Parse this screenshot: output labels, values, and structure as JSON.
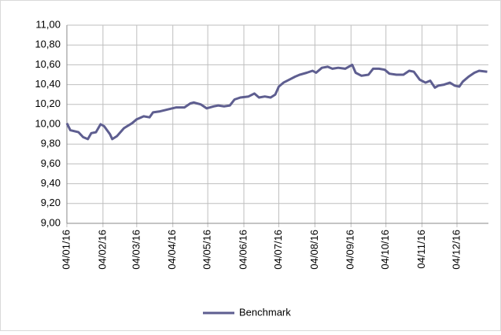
{
  "chart_data": {
    "type": "line",
    "x": [
      "04/01/16",
      "07/01/16",
      "14/01/16",
      "18/01/16",
      "22/01/16",
      "25/01/16",
      "29/01/16",
      "02/02/16",
      "05/02/16",
      "10/02/16",
      "12/02/16",
      "16/02/16",
      "22/02/16",
      "29/02/16",
      "04/03/16",
      "10/03/16",
      "15/03/16",
      "18/03/16",
      "24/03/16",
      "31/03/16",
      "07/04/16",
      "14/04/16",
      "19/04/16",
      "22/04/16",
      "28/04/16",
      "03/05/16",
      "09/05/16",
      "13/05/16",
      "18/05/16",
      "23/05/16",
      "27/05/16",
      "01/06/16",
      "08/06/16",
      "13/06/16",
      "17/06/16",
      "22/06/16",
      "27/06/16",
      "01/07/16",
      "04/07/16",
      "08/07/16",
      "13/07/16",
      "18/07/16",
      "22/07/16",
      "28/07/16",
      "02/08/16",
      "05/08/16",
      "10/08/16",
      "15/08/16",
      "19/08/16",
      "24/08/16",
      "30/08/16",
      "05/09/16",
      "08/09/16",
      "13/09/16",
      "19/09/16",
      "23/09/16",
      "28/09/16",
      "03/10/16",
      "07/10/16",
      "13/10/16",
      "19/10/16",
      "24/10/16",
      "28/10/16",
      "02/11/16",
      "07/11/16",
      "11/11/16",
      "15/11/16",
      "18/11/16",
      "23/11/16",
      "28/11/16",
      "02/12/16",
      "06/12/16",
      "09/12/16",
      "14/12/16",
      "19/12/16",
      "23/12/16",
      "30/12/16"
    ],
    "series": [
      {
        "name": "Benchmark",
        "color": "#5e5e90",
        "values": [
          10.01,
          9.94,
          9.92,
          9.87,
          9.85,
          9.91,
          9.92,
          10.0,
          9.98,
          9.9,
          9.85,
          9.88,
          9.96,
          10.01,
          10.05,
          10.08,
          10.07,
          10.12,
          10.13,
          10.15,
          10.17,
          10.17,
          10.21,
          10.22,
          10.2,
          10.16,
          10.18,
          10.19,
          10.18,
          10.19,
          10.25,
          10.27,
          10.28,
          10.31,
          10.27,
          10.28,
          10.27,
          10.3,
          10.38,
          10.42,
          10.45,
          10.48,
          10.5,
          10.52,
          10.54,
          10.52,
          10.57,
          10.58,
          10.56,
          10.57,
          10.56,
          10.6,
          10.52,
          10.49,
          10.5,
          10.56,
          10.56,
          10.55,
          10.51,
          10.5,
          10.5,
          10.54,
          10.53,
          10.45,
          10.42,
          10.44,
          10.37,
          10.39,
          10.4,
          10.42,
          10.39,
          10.38,
          10.43,
          10.48,
          10.52,
          10.54,
          10.53
        ]
      }
    ],
    "xlim": [
      "04/01/16",
      "31/12/16"
    ],
    "xticks": [
      "04/01/16",
      "04/02/16",
      "04/03/16",
      "04/04/16",
      "04/05/16",
      "04/06/16",
      "04/07/16",
      "04/08/16",
      "04/09/16",
      "04/10/16",
      "04/11/16",
      "04/12/16"
    ],
    "ylim": [
      9,
      11
    ],
    "yticks": [
      {
        "value": 9,
        "label": "9,00"
      },
      {
        "value": 9.2,
        "label": "9,20"
      },
      {
        "value": 9.4,
        "label": "9,40"
      },
      {
        "value": 9.6,
        "label": "9,60"
      },
      {
        "value": 9.8,
        "label": "9,80"
      },
      {
        "value": 10,
        "label": "10,00"
      },
      {
        "value": 10.2,
        "label": "10,20"
      },
      {
        "value": 10.4,
        "label": "10,40"
      },
      {
        "value": 10.6,
        "label": "10,60"
      },
      {
        "value": 10.8,
        "label": "10,80"
      },
      {
        "value": 11,
        "label": "11,00"
      }
    ],
    "grid": true,
    "legend": "bottom"
  }
}
